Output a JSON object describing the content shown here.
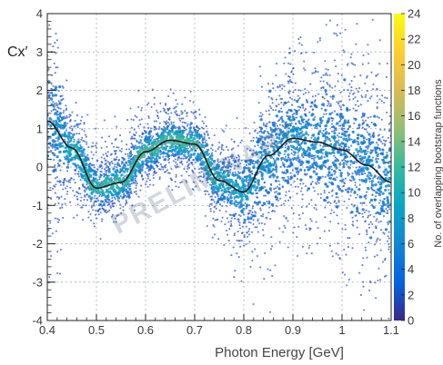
{
  "chart_data": {
    "type": "heatmap",
    "title": "",
    "xlabel": "Photon Energy [GeV]",
    "ylabel": "Cx′",
    "xlim": [
      0.4,
      1.1
    ],
    "ylim": [
      -4,
      4
    ],
    "x_ticks": [
      "0.4",
      "0.5",
      "0.6",
      "0.7",
      "0.8",
      "0.9",
      "1",
      "1.1"
    ],
    "y_ticks": [
      "-4",
      "-3",
      "-2",
      "-1",
      "0",
      "1",
      "2",
      "3",
      "4"
    ],
    "grid": true,
    "watermark": "PRELIMINARY",
    "colorbar": {
      "label": "No. of overlapping bootstrap functions",
      "range": [
        0,
        24
      ],
      "ticks": [
        "0",
        "2",
        "4",
        "6",
        "8",
        "10",
        "12",
        "14",
        "16",
        "18",
        "20",
        "22",
        "24"
      ]
    },
    "mean_curve": {
      "x": [
        0.4,
        0.45,
        0.5,
        0.55,
        0.6,
        0.65,
        0.7,
        0.75,
        0.8,
        0.85,
        0.9,
        0.95,
        1.0,
        1.05,
        1.1
      ],
      "y": [
        1.2,
        0.5,
        -0.55,
        -0.4,
        0.4,
        0.7,
        0.6,
        -0.35,
        -0.65,
        0.3,
        0.75,
        0.65,
        0.45,
        0.05,
        -0.4
      ]
    },
    "spread_upper": {
      "x": [
        0.4,
        0.45,
        0.5,
        0.55,
        0.6,
        0.65,
        0.7,
        0.75,
        0.8,
        0.85,
        0.9,
        0.95,
        1.0,
        1.05,
        1.1
      ],
      "y": [
        4.0,
        2.2,
        1.1,
        1.3,
        1.8,
        2.0,
        1.9,
        1.2,
        1.2,
        3.0,
        4.0,
        4.0,
        4.0,
        4.0,
        3.5
      ]
    },
    "spread_lower": {
      "x": [
        0.4,
        0.45,
        0.5,
        0.55,
        0.6,
        0.65,
        0.7,
        0.75,
        0.8,
        0.85,
        0.9,
        0.95,
        1.0,
        1.05,
        1.1
      ],
      "y": [
        -4.0,
        -1.5,
        -1.8,
        -1.6,
        -0.8,
        -0.6,
        -0.8,
        -2.0,
        -3.2,
        -3.8,
        -2.2,
        -2.5,
        -3.5,
        -4.0,
        -4.0
      ]
    }
  },
  "colors": {
    "dot": "#2a57c8",
    "curve": "#1c1c1c",
    "colormap": [
      "#352a87",
      "#0363e1",
      "#1485d4",
      "#06a7c6",
      "#38b99e",
      "#92bf73",
      "#d9ba56",
      "#fcce2e",
      "#f9fb0e"
    ]
  }
}
